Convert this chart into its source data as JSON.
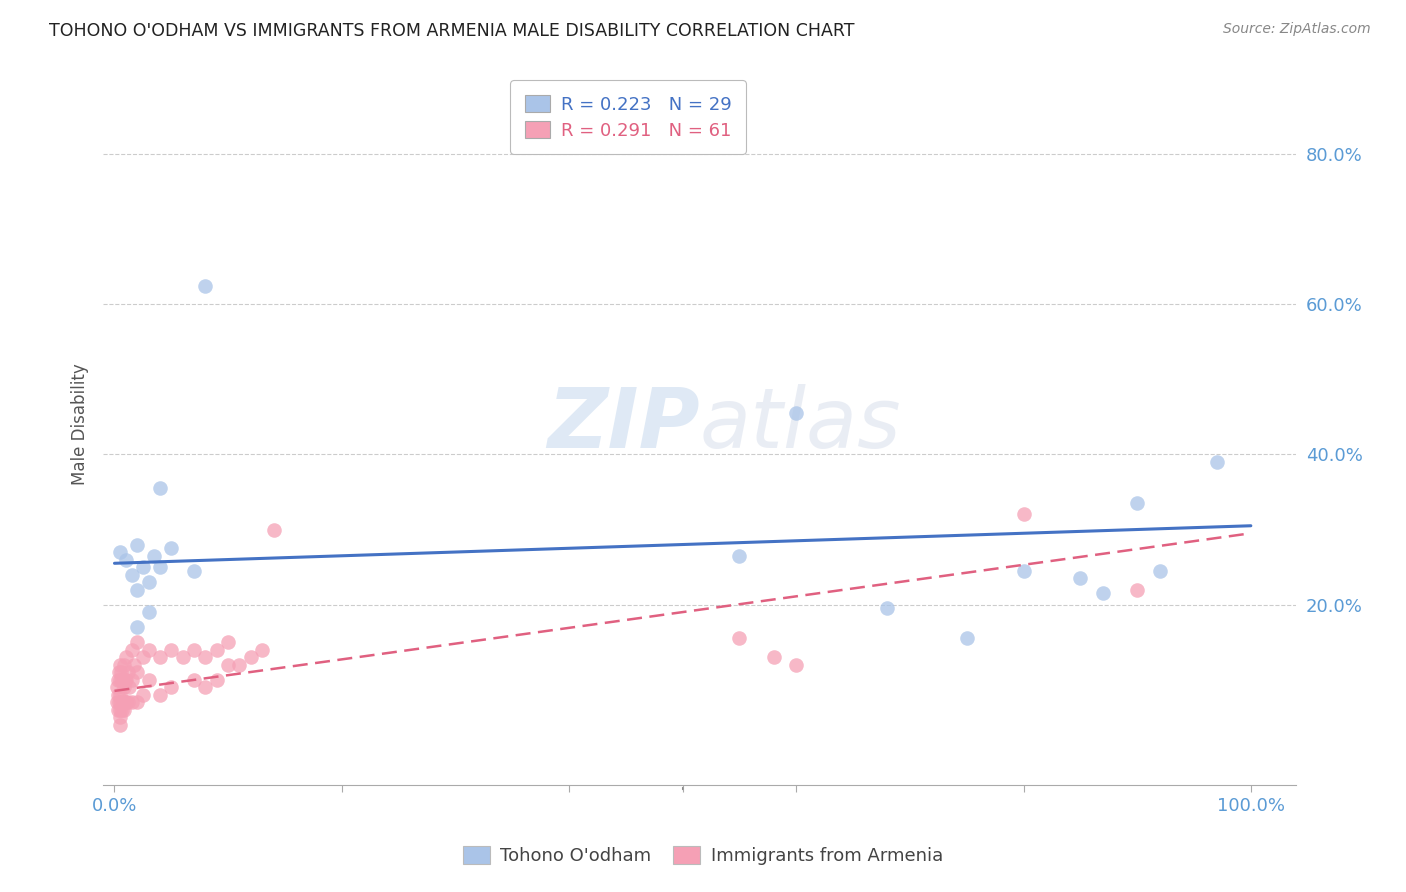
{
  "title": "TOHONO O'ODHAM VS IMMIGRANTS FROM ARMENIA MALE DISABILITY CORRELATION CHART",
  "source": "Source: ZipAtlas.com",
  "ylabel": "Male Disability",
  "ytick_labels": [
    "80.0%",
    "60.0%",
    "40.0%",
    "20.0%"
  ],
  "ytick_values": [
    0.8,
    0.6,
    0.4,
    0.2
  ],
  "xlim": [
    -0.01,
    1.04
  ],
  "ylim": [
    -0.04,
    0.92
  ],
  "legend_label_blue": "Tohono O'odham",
  "legend_label_pink": "Immigrants from Armenia",
  "blue_color": "#aac4e8",
  "pink_color": "#f5a0b5",
  "blue_line_color": "#4472c4",
  "pink_line_color": "#e06080",
  "blue_scatter_x": [
    0.005,
    0.01,
    0.015,
    0.02,
    0.02,
    0.02,
    0.025,
    0.03,
    0.03,
    0.035,
    0.04,
    0.04,
    0.05,
    0.07,
    0.08,
    0.55,
    0.6,
    0.68,
    0.75,
    0.8,
    0.85,
    0.87,
    0.9,
    0.92,
    0.97
  ],
  "blue_scatter_y": [
    0.27,
    0.26,
    0.24,
    0.28,
    0.22,
    0.17,
    0.25,
    0.23,
    0.19,
    0.265,
    0.25,
    0.355,
    0.275,
    0.245,
    0.625,
    0.265,
    0.455,
    0.195,
    0.155,
    0.245,
    0.235,
    0.215,
    0.335,
    0.245,
    0.39
  ],
  "pink_scatter_x": [
    0.002,
    0.002,
    0.003,
    0.003,
    0.003,
    0.004,
    0.004,
    0.005,
    0.005,
    0.005,
    0.005,
    0.005,
    0.005,
    0.006,
    0.006,
    0.007,
    0.007,
    0.008,
    0.008,
    0.008,
    0.009,
    0.009,
    0.01,
    0.01,
    0.01,
    0.012,
    0.012,
    0.013,
    0.015,
    0.015,
    0.015,
    0.017,
    0.02,
    0.02,
    0.02,
    0.025,
    0.025,
    0.03,
    0.03,
    0.04,
    0.04,
    0.05,
    0.05,
    0.06,
    0.07,
    0.07,
    0.08,
    0.08,
    0.09,
    0.09,
    0.1,
    0.1,
    0.11,
    0.12,
    0.13,
    0.14,
    0.55,
    0.58,
    0.6,
    0.8,
    0.9
  ],
  "pink_scatter_y": [
    0.09,
    0.07,
    0.1,
    0.08,
    0.06,
    0.11,
    0.07,
    0.12,
    0.1,
    0.08,
    0.06,
    0.05,
    0.04,
    0.11,
    0.07,
    0.1,
    0.06,
    0.12,
    0.09,
    0.06,
    0.1,
    0.07,
    0.13,
    0.1,
    0.07,
    0.11,
    0.07,
    0.09,
    0.14,
    0.1,
    0.07,
    0.12,
    0.15,
    0.11,
    0.07,
    0.13,
    0.08,
    0.14,
    0.1,
    0.13,
    0.08,
    0.14,
    0.09,
    0.13,
    0.14,
    0.1,
    0.13,
    0.09,
    0.14,
    0.1,
    0.15,
    0.12,
    0.12,
    0.13,
    0.14,
    0.3,
    0.155,
    0.13,
    0.12,
    0.32,
    0.22
  ],
  "blue_trend_x": [
    0.0,
    1.0
  ],
  "blue_trend_y": [
    0.255,
    0.305
  ],
  "pink_trend_x": [
    0.0,
    1.0
  ],
  "pink_trend_y": [
    0.085,
    0.295
  ]
}
